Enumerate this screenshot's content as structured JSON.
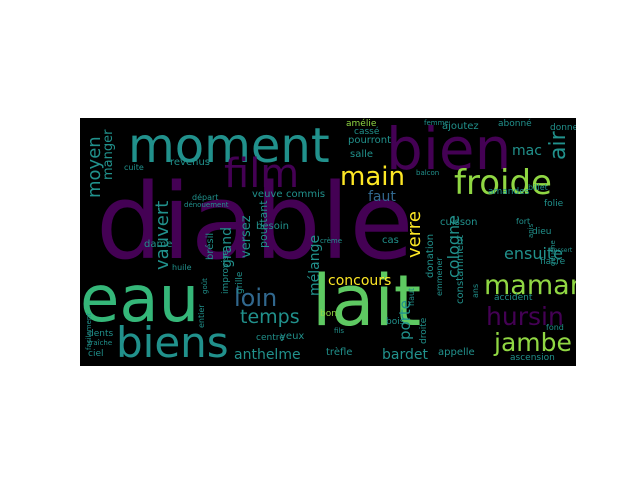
{
  "palette": {
    "purple": "#440154",
    "indigo": "#3b528b",
    "blue": "#31688e",
    "teal": "#21918c",
    "green": "#35b779",
    "lime": "#5ec962",
    "yellow": "#fde725",
    "lightgreen": "#90d743"
  },
  "words": {
    "diable": "diable",
    "lait": "lait",
    "eau": "eau",
    "bien": "bien",
    "moment": "moment",
    "biens": "biens",
    "film": "film",
    "froide": "froide",
    "main": "main",
    "maman": "maman",
    "jambe": "jambe",
    "hursin": "hursin",
    "loin": "loin",
    "temps": "temps",
    "verre": "verre",
    "vauvert": "vauvert",
    "moyen": "moyen",
    "air": "air",
    "concours": "concours",
    "ensuite": "ensuite",
    "cologne": "cologne",
    "anthelme": "anthelme",
    "bardet": "bardet",
    "porte": "porte",
    "grand": "grand",
    "mac": "mac",
    "faut": "faut",
    "manger": "manger",
    "melange": "mélange",
    "versez": "versez",
    "revenus": "revenus",
    "pourtant": "pourtant",
    "pourront": "pourront",
    "salle": "salle",
    "casse": "cassé",
    "amelie": "amélie",
    "ajoutez": "ajoutez",
    "abonne": "abonné",
    "donner": "donner",
    "cuisson": "cuisson",
    "constamment": "constamment",
    "donation": "donation",
    "cas": "cas",
    "besoin": "besoin",
    "veuve": "veuve",
    "commis": "commis",
    "dame": "dame",
    "bresil": "brésil",
    "huile": "huile",
    "yeux": "yeux",
    "trefle": "trèfle",
    "appelle": "appelle",
    "ascension": "ascension",
    "centre": "centre",
    "bois": "bois",
    "bon": "bon",
    "droite": "droite",
    "accident": "accident",
    "fond": "fond",
    "fiacre": "fiacre",
    "folie": "folie",
    "dieu": "dieu",
    "fort": "fort",
    "amandes": "amandes",
    "billet": "billet",
    "dents": "dents",
    "ciel": "ciel",
    "fraiche": "fraîche",
    "facilement": "facilement",
    "depart": "départ",
    "denouement": "dénouement",
    "improvise": "improvise",
    "grille": "grille",
    "haut": "haut",
    "ans": "ans",
    "femme": "femme",
    "gauche": "gauche",
    "entier": "entier",
    "emmener": "emmener",
    "cuite": "cuite",
    "balcon": "balcon",
    "dessert": "dessert",
    "anis": "anis",
    "gout": "goût",
    "fils": "fils",
    "creme": "crème"
  }
}
